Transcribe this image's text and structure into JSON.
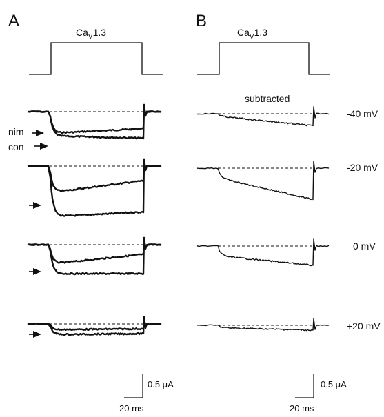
{
  "chart_data": {
    "type": "line",
    "panels": [
      {
        "letter": "A",
        "protocol_label": "Ca",
        "protocol_sub": "V",
        "protocol_suffix": "1.3",
        "arrow_labels": [
          "nim",
          "con"
        ],
        "rows": [
          {
            "voltage": "-40 mV",
            "series": [
              {
                "name": "nim",
                "peak": -0.45,
                "end": -0.35
              },
              {
                "name": "con",
                "peak": -0.5,
                "end": -0.55
              }
            ]
          },
          {
            "voltage": "-20 mV",
            "series": [
              {
                "name": "nim",
                "peak": -0.55,
                "end": -0.3
              },
              {
                "name": "con",
                "peak": -1.05,
                "end": -0.95
              }
            ]
          },
          {
            "voltage": "0 mV",
            "series": [
              {
                "name": "nim",
                "peak": -0.4,
                "end": -0.2
              },
              {
                "name": "con",
                "peak": -0.6,
                "end": -0.6
              }
            ]
          },
          {
            "voltage": "+20 mV",
            "series": [
              {
                "name": "nim",
                "peak": -0.12,
                "end": -0.1
              },
              {
                "name": "con",
                "peak": -0.22,
                "end": -0.2
              }
            ]
          }
        ],
        "scale": {
          "current": "0.5 μA",
          "time": "20 ms"
        }
      },
      {
        "letter": "B",
        "protocol_label": "Ca",
        "protocol_sub": "V",
        "protocol_suffix": "1.3",
        "annotation": "subtracted",
        "rows": [
          {
            "voltage": "-40 mV",
            "series": [
              {
                "name": "subtracted",
                "peak": -0.05,
                "end": -0.25
              }
            ]
          },
          {
            "voltage": "-20 mV",
            "series": [
              {
                "name": "subtracted",
                "peak": -0.2,
                "end": -0.65
              }
            ]
          },
          {
            "voltage": "0 mV",
            "series": [
              {
                "name": "subtracted",
                "peak": -0.2,
                "end": -0.4
              }
            ]
          },
          {
            "voltage": "+20 mV",
            "series": [
              {
                "name": "subtracted",
                "peak": -0.05,
                "end": -0.1
              }
            ]
          }
        ],
        "scale": {
          "current": "0.5 μA",
          "time": "20 ms"
        }
      }
    ]
  }
}
